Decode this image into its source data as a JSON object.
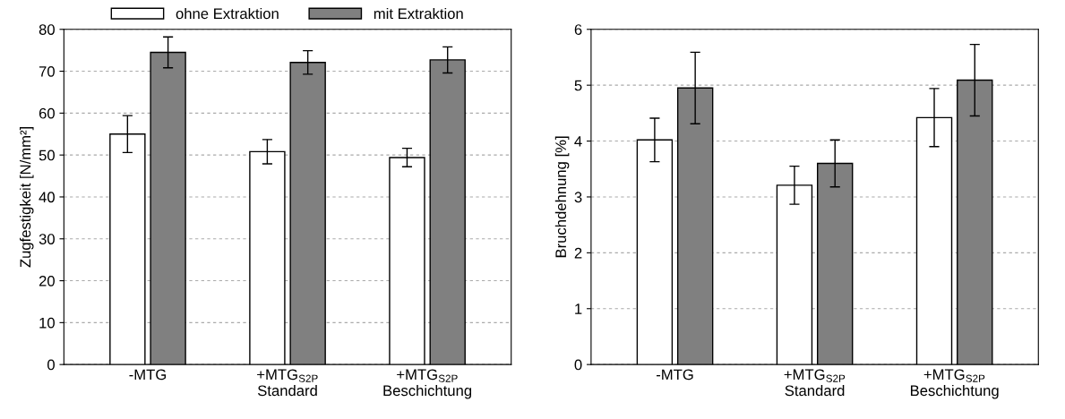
{
  "chart_data": [
    {
      "type": "bar",
      "categories": [
        "-MTG",
        "+MTG$_{S2P}$\nStandard",
        "+MTG$_{S2P}$\nBeschichtung"
      ],
      "ylabel": "Zugfestigkeit [N/mm²]",
      "ylim": [
        0,
        80
      ],
      "yticks": [
        0,
        10,
        20,
        30,
        40,
        50,
        60,
        70,
        80
      ],
      "grid": "y",
      "legend": "top",
      "series": [
        {
          "name": "ohne Extraktion",
          "color": "#ffffff",
          "values": [
            55.0,
            50.8,
            49.4
          ],
          "errors": [
            4.4,
            2.9,
            2.2
          ]
        },
        {
          "name": "mit Extraktion",
          "color": "#808080",
          "values": [
            74.5,
            72.1,
            72.7
          ],
          "errors": [
            3.7,
            2.8,
            3.1
          ]
        }
      ]
    },
    {
      "type": "bar",
      "categories": [
        "-MTG",
        "+MTG$_{S2P}$\nStandard",
        "+MTG$_{S2P}$\nBeschichtung"
      ],
      "ylabel": "Bruchdehnung [%]",
      "ylim": [
        0,
        6
      ],
      "yticks": [
        0,
        1,
        2,
        3,
        4,
        5,
        6
      ],
      "grid": "y",
      "series": [
        {
          "color": "#ffffff",
          "values": [
            4.02,
            3.21,
            4.42
          ],
          "errors": [
            0.39,
            0.34,
            0.52
          ]
        },
        {
          "color": "#808080",
          "values": [
            4.95,
            3.6,
            5.09
          ],
          "errors": [
            0.64,
            0.42,
            0.64
          ]
        }
      ]
    }
  ]
}
